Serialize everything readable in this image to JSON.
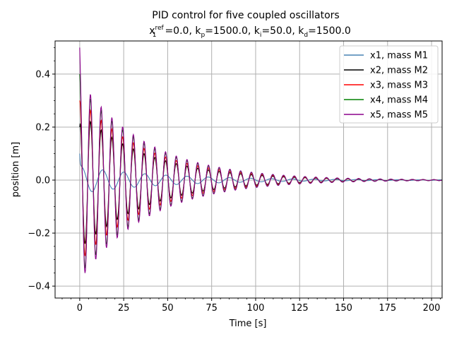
{
  "chart_data": {
    "type": "line",
    "title_line1": "PID control for five coupled oscillators",
    "title_line2": {
      "x1": "x",
      "x1_sup": "ref",
      "x1_sub": "1",
      "x1_val": "=0.0, k",
      "kp_sub": "p",
      "kp_val": "=1500.0, k",
      "ki_sub": "i",
      "ki_val": "=50.0, k",
      "kd_sub": "d",
      "kd_val": "=1500.0"
    },
    "xlabel": "Time [s]",
    "ylabel": "position [m]",
    "xlim": [
      -14,
      206
    ],
    "ylim": [
      -0.445,
      0.525
    ],
    "xticks": [
      0,
      25,
      50,
      75,
      100,
      125,
      150,
      175,
      200
    ],
    "xtick_labels": [
      "0",
      "25",
      "50",
      "75",
      "100",
      "125",
      "150",
      "175",
      "200"
    ],
    "yticks": [
      -0.4,
      -0.2,
      0.0,
      0.2,
      0.4
    ],
    "ytick_labels": [
      "−0.4",
      "−0.2",
      "0.0",
      "0.2",
      "0.4"
    ],
    "grid": true,
    "legend_position": "top-right",
    "series": [
      {
        "name": "x1, mass M1",
        "color": "#4682b4",
        "x0": 0.1,
        "amp": 0.05,
        "period": 12.0,
        "decay": 0.02,
        "phase": 1.0
      },
      {
        "name": "x2, mass M2",
        "color": "#000000",
        "x0": 0.2,
        "amp": 0.26,
        "period": 6.1,
        "decay": 0.026,
        "phase": 0.0
      },
      {
        "name": "x3, mass M3",
        "color": "#ff0000",
        "x0": 0.3,
        "amp": 0.31,
        "period": 6.1,
        "decay": 0.026,
        "phase": 0.0
      },
      {
        "name": "x4, mass M4",
        "color": "#008000",
        "x0": 0.4,
        "amp": 0.36,
        "period": 6.1,
        "decay": 0.026,
        "phase": 0.0
      },
      {
        "name": "x5, mass M5",
        "color": "#8b008b",
        "x0": 0.5,
        "amp": 0.38,
        "period": 6.1,
        "decay": 0.026,
        "phase": 0.0
      }
    ]
  }
}
